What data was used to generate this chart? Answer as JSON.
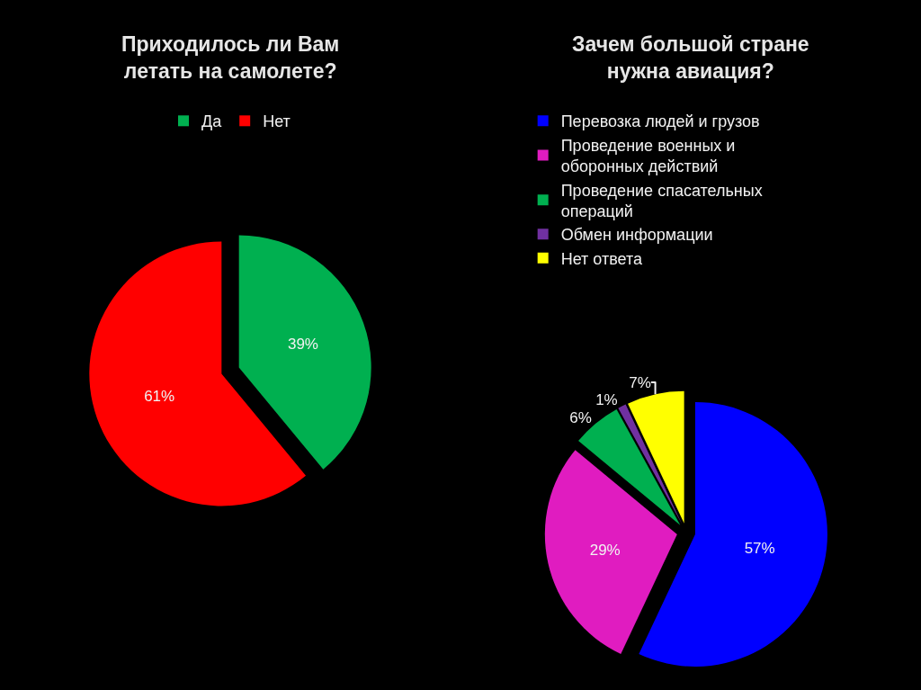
{
  "chart_data": [
    {
      "type": "pie",
      "title": "Приходилось ли Вам летать на самолете?",
      "categories": [
        "Да",
        "Нет"
      ],
      "values": [
        39,
        61
      ],
      "colors": [
        "#00b050",
        "#ff0000"
      ],
      "value_labels": [
        "39%",
        "61%"
      ],
      "legend": "top"
    },
    {
      "type": "pie",
      "title": "Зачем большой стране нужна авиация?",
      "categories": [
        "Перевозка людей и грузов",
        "Проведение военных и оборонных действий",
        "Проведение спасательных операций",
        "Обмен информации",
        "Нет ответа"
      ],
      "values": [
        57,
        29,
        6,
        1,
        7
      ],
      "colors": [
        "#0000ff",
        "#e01cc0",
        "#00b050",
        "#7030a0",
        "#ffff00"
      ],
      "value_labels": [
        "57%",
        "29%",
        "6%",
        "1%",
        "7%"
      ],
      "legend": "top"
    }
  ]
}
